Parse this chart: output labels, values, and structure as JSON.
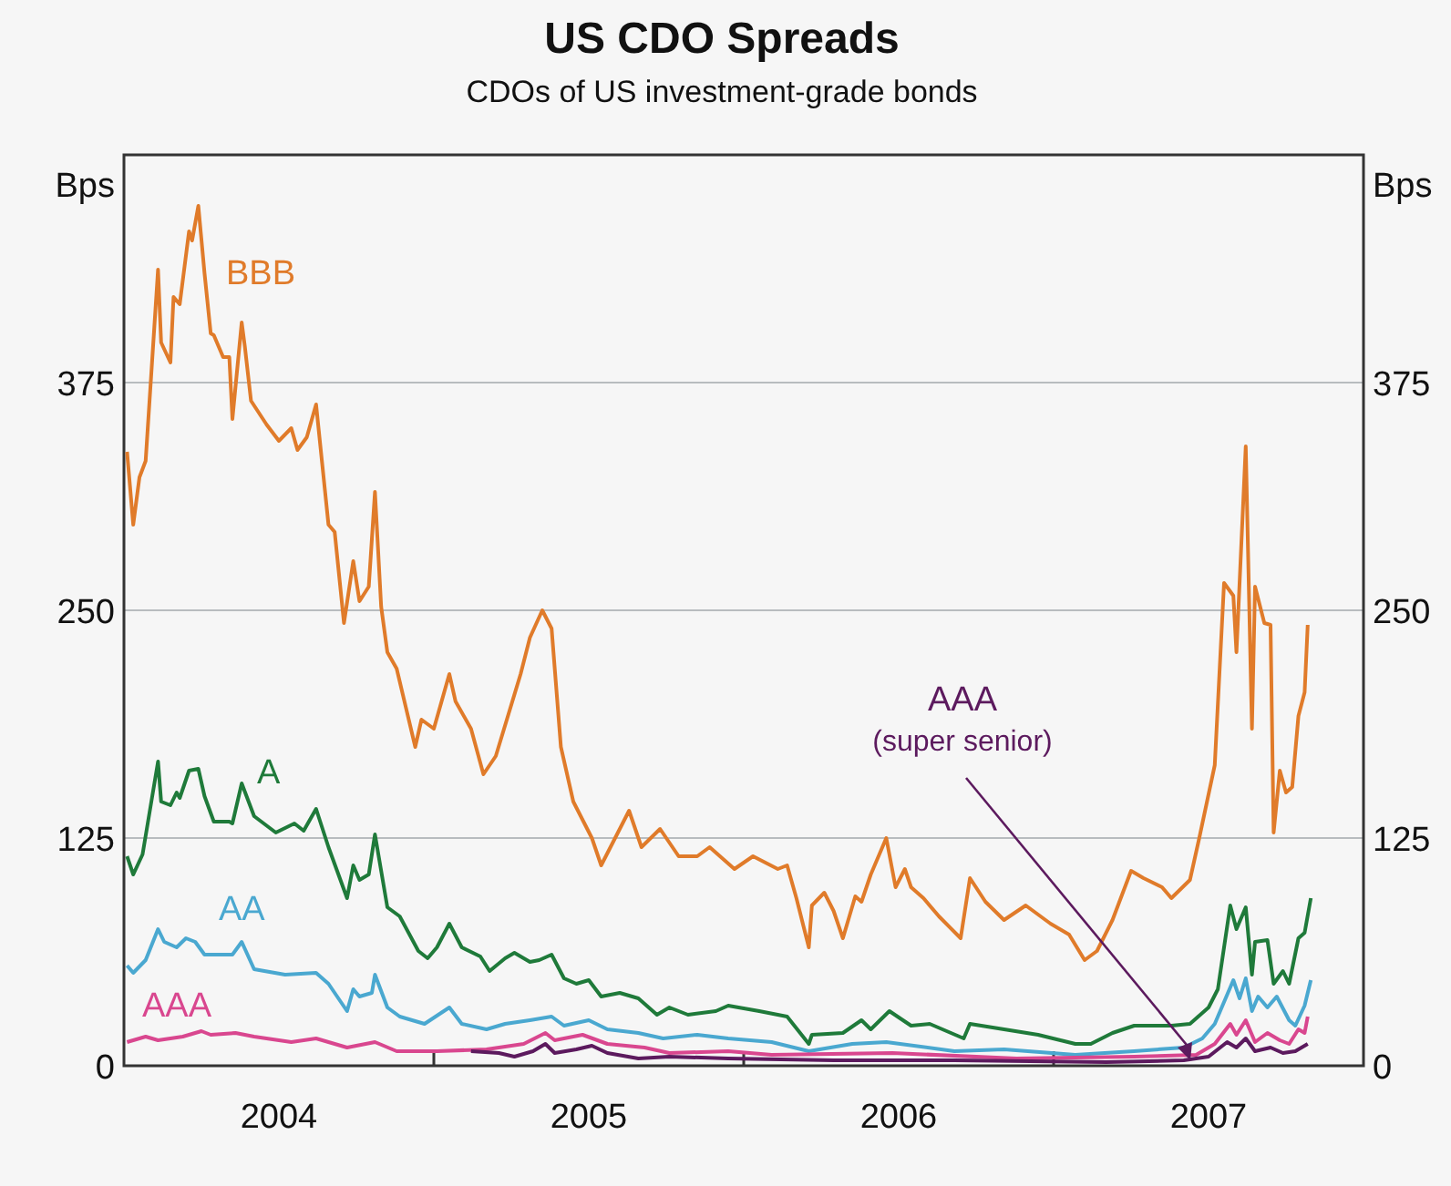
{
  "chart_data": {
    "type": "line",
    "title": "US CDO Spreads",
    "subtitle": "CDOs of US investment-grade bonds",
    "ylabel": "Bps",
    "y2label": "Bps",
    "xlim": [
      2004,
      2008
    ],
    "xticks": [
      {
        "value": 2005,
        "label": null
      },
      {
        "value": 2006,
        "label": null
      },
      {
        "value": 2007,
        "label": null
      },
      {
        "value": 2004.5,
        "label": "2004"
      },
      {
        "value": 2005.5,
        "label": "2005"
      },
      {
        "value": 2006.5,
        "label": "2006"
      },
      {
        "value": 2007.5,
        "label": "2007"
      }
    ],
    "ylim": [
      0,
      500
    ],
    "yticks": [
      0,
      125,
      250,
      375
    ],
    "y2lim": [
      0,
      500
    ],
    "y2ticks": [
      0,
      125,
      250,
      375
    ],
    "grid": "y",
    "line_style": "solid",
    "marker": "none",
    "series": [
      {
        "name": "BBB",
        "color": "#e07b2a",
        "x": [
          2004.01,
          2004.03,
          2004.05,
          2004.07,
          2004.11,
          2004.12,
          2004.15,
          2004.16,
          2004.18,
          2004.21,
          2004.22,
          2004.24,
          2004.26,
          2004.28,
          2004.29,
          2004.32,
          2004.34,
          2004.35,
          2004.38,
          2004.39,
          2004.41,
          2004.46,
          2004.5,
          2004.54,
          2004.56,
          2004.59,
          2004.62,
          2004.66,
          2004.68,
          2004.71,
          2004.74,
          2004.76,
          2004.79,
          2004.81,
          2004.83,
          2004.85,
          2004.88,
          2004.94,
          2004.96,
          2005.0,
          2005.05,
          2005.07,
          2005.12,
          2005.16,
          2005.2,
          2005.28,
          2005.31,
          2005.35,
          2005.38,
          2005.41,
          2005.45,
          2005.51,
          2005.54,
          2005.6,
          2005.63,
          2005.67,
          2005.73,
          2005.79,
          2005.85,
          2005.89,
          2005.97,
          2006.03,
          2006.11,
          2006.14,
          2006.17,
          2006.21,
          2006.22,
          2006.26,
          2006.29,
          2006.32,
          2006.36,
          2006.38,
          2006.41,
          2006.46,
          2006.49,
          2006.52,
          2006.54,
          2006.58,
          2006.63,
          2006.7,
          2006.73,
          2006.78,
          2006.84,
          2006.91,
          2006.99,
          2007.05,
          2007.1,
          2007.14,
          2007.19,
          2007.25,
          2007.29,
          2007.35,
          2007.38,
          2007.44,
          2007.47,
          2007.52,
          2007.55,
          2007.58,
          2007.59,
          2007.62,
          2007.64,
          2007.65,
          2007.68,
          2007.7,
          2007.71,
          2007.73,
          2007.75,
          2007.77,
          2007.79,
          2007.81,
          2007.82
        ],
        "values": [
          337,
          297,
          323,
          332,
          437,
          397,
          386,
          422,
          418,
          458,
          453,
          472,
          435,
          402,
          401,
          389,
          389,
          355,
          408,
          395,
          365,
          352,
          343,
          350,
          338,
          345,
          363,
          297,
          293,
          243,
          277,
          255,
          263,
          315,
          252,
          227,
          218,
          175,
          190,
          185,
          215,
          200,
          185,
          160,
          170,
          215,
          235,
          250,
          240,
          175,
          145,
          125,
          110,
          130,
          140,
          120,
          130,
          115,
          115,
          120,
          108,
          115,
          108,
          110,
          92,
          65,
          88,
          95,
          85,
          70,
          93,
          90,
          105,
          125,
          98,
          108,
          98,
          92,
          82,
          70,
          103,
          90,
          80,
          88,
          78,
          72,
          58,
          63,
          80,
          107,
          103,
          98,
          92,
          102,
          125,
          165,
          265,
          258,
          227,
          340,
          185,
          263,
          243,
          242,
          128,
          162,
          150,
          153,
          192,
          205,
          242
        ]
      },
      {
        "name": "A",
        "color": "#1f7a3a",
        "x": [
          2004.01,
          2004.03,
          2004.06,
          2004.11,
          2004.12,
          2004.15,
          2004.17,
          2004.18,
          2004.21,
          2004.24,
          2004.26,
          2004.29,
          2004.34,
          2004.35,
          2004.38,
          2004.42,
          2004.49,
          2004.55,
          2004.58,
          2004.62,
          2004.66,
          2004.72,
          2004.74,
          2004.76,
          2004.79,
          2004.81,
          2004.85,
          2004.89,
          2004.95,
          2004.98,
          2005.01,
          2005.05,
          2005.09,
          2005.15,
          2005.18,
          2005.23,
          2005.26,
          2005.31,
          2005.34,
          2005.38,
          2005.42,
          2005.46,
          2005.5,
          2005.54,
          2005.6,
          2005.66,
          2005.72,
          2005.76,
          2005.82,
          2005.91,
          2005.95,
          2006.05,
          2006.14,
          2006.21,
          2006.22,
          2006.32,
          2006.38,
          2006.41,
          2006.47,
          2006.54,
          2006.6,
          2006.71,
          2006.73,
          2006.84,
          2006.95,
          2007.07,
          2007.12,
          2007.19,
          2007.26,
          2007.38,
          2007.44,
          2007.5,
          2007.53,
          2007.57,
          2007.59,
          2007.62,
          2007.64,
          2007.65,
          2007.69,
          2007.71,
          2007.74,
          2007.76,
          2007.79,
          2007.81,
          2007.83
        ],
        "values": [
          115,
          105,
          116,
          167,
          145,
          143,
          150,
          147,
          162,
          163,
          148,
          134,
          134,
          133,
          155,
          137,
          128,
          133,
          129,
          141,
          120,
          92,
          110,
          102,
          105,
          127,
          87,
          82,
          63,
          59,
          65,
          78,
          65,
          60,
          52,
          59,
          62,
          57,
          58,
          61,
          48,
          45,
          47,
          38,
          40,
          37,
          28,
          32,
          28,
          30,
          33,
          30,
          27,
          12,
          17,
          18,
          25,
          20,
          30,
          22,
          23,
          15,
          23,
          20,
          17,
          12,
          12,
          18,
          22,
          22,
          23,
          32,
          42,
          88,
          75,
          87,
          50,
          68,
          69,
          45,
          52,
          45,
          70,
          73,
          92
        ]
      },
      {
        "name": "AA",
        "color": "#4aa8d0",
        "x": [
          2004.01,
          2004.03,
          2004.07,
          2004.11,
          2004.13,
          2004.17,
          2004.2,
          2004.23,
          2004.26,
          2004.35,
          2004.38,
          2004.42,
          2004.52,
          2004.62,
          2004.66,
          2004.72,
          2004.74,
          2004.76,
          2004.8,
          2004.81,
          2004.85,
          2004.89,
          2004.97,
          2005.05,
          2005.09,
          2005.17,
          2005.23,
          2005.31,
          2005.38,
          2005.42,
          2005.5,
          2005.56,
          2005.66,
          2005.74,
          2005.85,
          2005.95,
          2006.09,
          2006.21,
          2006.35,
          2006.46,
          2006.68,
          2006.84,
          2007.07,
          2007.26,
          2007.42,
          2007.48,
          2007.52,
          2007.58,
          2007.6,
          2007.62,
          2007.64,
          2007.66,
          2007.69,
          2007.72,
          2007.76,
          2007.78,
          2007.81,
          2007.83
        ],
        "values": [
          55,
          51,
          58,
          75,
          68,
          65,
          70,
          68,
          61,
          61,
          68,
          53,
          50,
          51,
          45,
          30,
          42,
          38,
          40,
          50,
          32,
          27,
          23,
          32,
          23,
          20,
          23,
          25,
          27,
          22,
          25,
          20,
          18,
          15,
          17,
          15,
          13,
          8,
          12,
          13,
          8,
          9,
          6,
          8,
          10,
          15,
          23,
          47,
          37,
          48,
          30,
          38,
          32,
          38,
          25,
          22,
          33,
          47
        ]
      },
      {
        "name": "AAA",
        "color": "#d9478f",
        "x": [
          2004.01,
          2004.07,
          2004.11,
          2004.19,
          2004.25,
          2004.28,
          2004.36,
          2004.42,
          2004.54,
          2004.62,
          2004.72,
          2004.81,
          2004.88,
          2005.01,
          2005.17,
          2005.29,
          2005.36,
          2005.39,
          2005.48,
          2005.56,
          2005.68,
          2005.76,
          2005.95,
          2006.09,
          2006.48,
          2006.88,
          2007.26,
          2007.46,
          2007.52,
          2007.57,
          2007.59,
          2007.62,
          2007.65,
          2007.69,
          2007.73,
          2007.76,
          2007.79,
          2007.81,
          2007.82
        ],
        "values": [
          13,
          16,
          14,
          16,
          19,
          17,
          18,
          16,
          13,
          15,
          10,
          13,
          8,
          8,
          9,
          12,
          18,
          14,
          17,
          12,
          10,
          7,
          8,
          6,
          7,
          4,
          5,
          6,
          12,
          23,
          17,
          25,
          13,
          18,
          14,
          12,
          20,
          18,
          27
        ]
      },
      {
        "name": "AAA\n(super senior)",
        "color": "#5c1a5e",
        "x": [
          2005.12,
          2005.21,
          2005.26,
          2005.32,
          2005.36,
          2005.39,
          2005.46,
          2005.51,
          2005.56,
          2005.66,
          2005.76,
          2005.95,
          2006.29,
          2006.68,
          2007.17,
          2007.42,
          2007.5,
          2007.56,
          2007.59,
          2007.62,
          2007.65,
          2007.7,
          2007.74,
          2007.78,
          2007.82
        ],
        "values": [
          8,
          7,
          5,
          8,
          12,
          7,
          9,
          11,
          7,
          4,
          5,
          4,
          3,
          3,
          2,
          3,
          5,
          13,
          10,
          15,
          8,
          10,
          7,
          8,
          12
        ]
      }
    ]
  }
}
